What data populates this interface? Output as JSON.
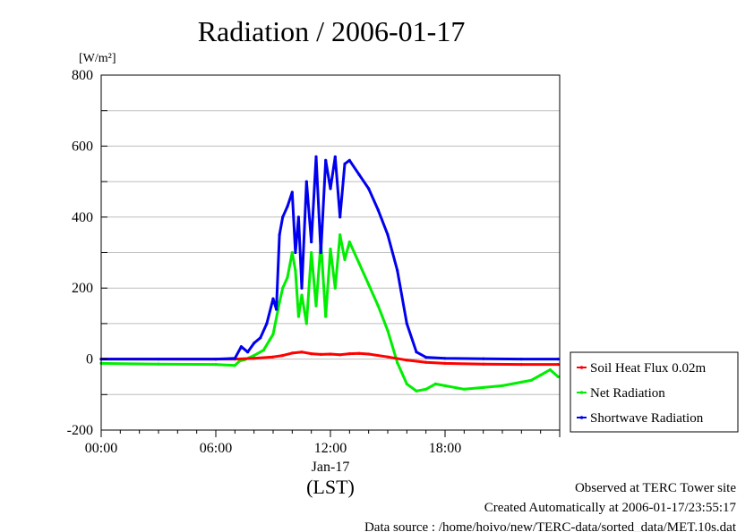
{
  "chart_data": {
    "type": "line",
    "title": "Radiation / 2006-01-17",
    "ylabel": "[W/m²]",
    "xlabel": "(LST)",
    "x_date_label": "Jan-17",
    "xlim": [
      "00:00",
      "24:00"
    ],
    "ylim": [
      -200,
      800
    ],
    "grid": true,
    "legend_position": "lower-right-outside",
    "y_ticks": [
      "-200",
      "0",
      "200",
      "400",
      "600",
      "800"
    ],
    "x_ticks": [
      "00:00",
      "06:00",
      "12:00",
      "18:00"
    ],
    "series": [
      {
        "name": "Soil Heat Flux 0.02m",
        "color": "#ff0000",
        "x": [
          "00:00",
          "06:00",
          "07:00",
          "08:00",
          "09:00",
          "09:30",
          "10:00",
          "10:30",
          "11:00",
          "11:30",
          "12:00",
          "12:30",
          "13:00",
          "13:30",
          "14:00",
          "15:00",
          "16:00",
          "17:00",
          "18:00",
          "20:00",
          "22:00",
          "23:55"
        ],
        "values": [
          0,
          0,
          0,
          2,
          6,
          10,
          17,
          20,
          15,
          13,
          14,
          12,
          15,
          16,
          14,
          6,
          -3,
          -9,
          -12,
          -14,
          -15,
          -15
        ]
      },
      {
        "name": "Net Radiation",
        "color": "#00ee00",
        "x": [
          "00:00",
          "03:00",
          "06:00",
          "07:00",
          "07:15",
          "07:30",
          "08:00",
          "08:30",
          "08:50",
          "09:00",
          "09:20",
          "09:30",
          "09:45",
          "10:00",
          "10:10",
          "10:20",
          "10:30",
          "10:45",
          "11:00",
          "11:15",
          "11:30",
          "11:45",
          "12:00",
          "12:15",
          "12:30",
          "12:45",
          "13:00",
          "13:30",
          "14:00",
          "14:30",
          "15:00",
          "15:30",
          "16:00",
          "16:30",
          "17:00",
          "17:30",
          "18:00",
          "19:00",
          "20:00",
          "21:00",
          "22:00",
          "22:30",
          "23:00",
          "23:30",
          "23:55"
        ],
        "values": [
          -12,
          -14,
          -15,
          -18,
          -5,
          -2,
          10,
          25,
          55,
          70,
          160,
          200,
          230,
          300,
          250,
          120,
          180,
          100,
          300,
          150,
          330,
          120,
          310,
          200,
          350,
          280,
          330,
          270,
          210,
          150,
          80,
          -10,
          -70,
          -90,
          -85,
          -70,
          -75,
          -85,
          -80,
          -75,
          -65,
          -60,
          -45,
          -30,
          -50
        ]
      },
      {
        "name": "Shortwave Radiation",
        "color": "#0000ee",
        "x": [
          "00:00",
          "03:00",
          "06:00",
          "07:00",
          "07:20",
          "07:40",
          "08:00",
          "08:20",
          "08:40",
          "09:00",
          "09:10",
          "09:20",
          "09:30",
          "09:45",
          "10:00",
          "10:10",
          "10:20",
          "10:30",
          "10:45",
          "11:00",
          "11:15",
          "11:30",
          "11:45",
          "12:00",
          "12:15",
          "12:30",
          "12:45",
          "13:00",
          "13:30",
          "14:00",
          "14:30",
          "15:00",
          "15:30",
          "16:00",
          "16:30",
          "17:00",
          "18:00",
          "20:00",
          "22:00",
          "23:55"
        ],
        "values": [
          0,
          0,
          0,
          2,
          35,
          20,
          45,
          60,
          100,
          170,
          140,
          350,
          400,
          430,
          470,
          300,
          400,
          200,
          500,
          330,
          570,
          300,
          560,
          480,
          570,
          400,
          550,
          560,
          520,
          480,
          420,
          350,
          250,
          100,
          20,
          5,
          2,
          1,
          0,
          0
        ]
      }
    ],
    "footer": {
      "line1": "Observed at TERC Tower site",
      "line2": "Created Automatically at 2006-01-17/23:55:17",
      "line3": "Data source : /home/hoivo/new/TERC-data/sorted_data/MET.10s.dat"
    }
  }
}
